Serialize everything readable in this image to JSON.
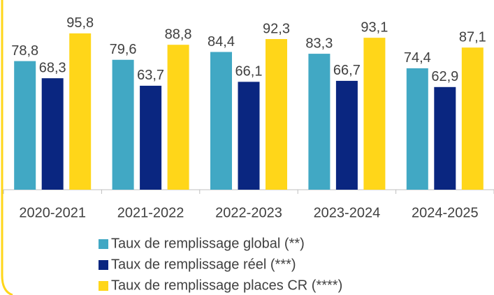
{
  "chart_data": {
    "type": "bar",
    "categories": [
      "2020-2021",
      "2021-2022",
      "2022-2023",
      "2023-2024",
      "2024-2025"
    ],
    "series": [
      {
        "name": "Taux de remplissage global (**)",
        "color": "#41a8c4",
        "values": [
          78.8,
          79.6,
          84.4,
          83.3,
          74.4
        ],
        "value_labels": [
          "78,8",
          "79,6",
          "84,4",
          "83,3",
          "74,4"
        ]
      },
      {
        "name": "Taux de remplissage réel (***)",
        "color": "#0a2680",
        "values": [
          68.3,
          63.7,
          66.1,
          66.7,
          62.9
        ],
        "value_labels": [
          "68,3",
          "63,7",
          "66,1",
          "66,7",
          "62,9"
        ]
      },
      {
        "name": "Taux de remplissage places CR (****)",
        "color": "#ffd619",
        "values": [
          95.8,
          88.8,
          92.3,
          93.1,
          87.1
        ],
        "value_labels": [
          "95,8",
          "88,8",
          "92,3",
          "93,1",
          "87,1"
        ]
      }
    ],
    "ylim": [
      0,
      100
    ],
    "legend": "bottom"
  }
}
